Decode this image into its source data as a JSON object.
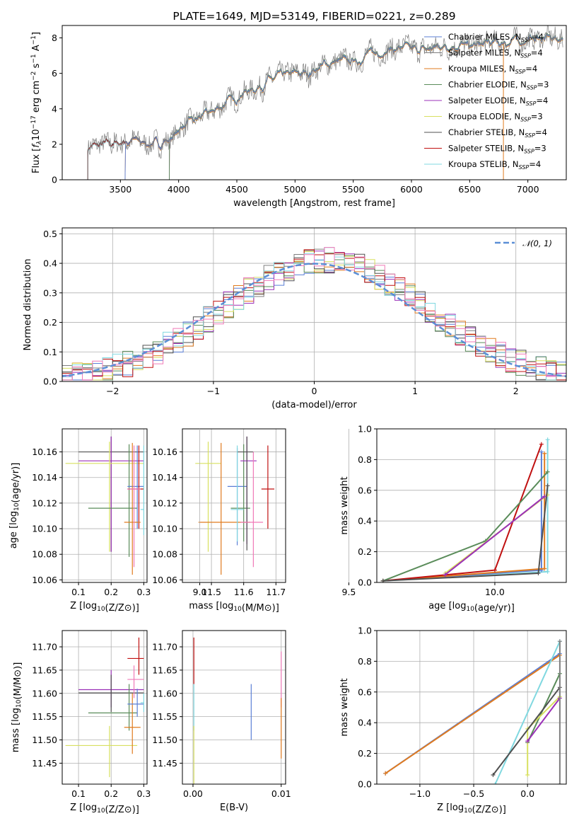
{
  "colors": {
    "Chabrier MILES": "#5b7fd6",
    "Salpeter MILES": "#7f7f7f",
    "Kroupa MILES": "#e07b1f",
    "Chabrier ELODIE": "#5a8c5a",
    "Salpeter ELODIE": "#9b30b8",
    "Kroupa ELODIE": "#d8e060",
    "Chabrier STELIB": "#505050",
    "Salpeter STELIB": "#c01010",
    "Kroupa STELIB": "#80d8e0",
    "pink": "#f07ab8",
    "normal": "#5b8fd6"
  },
  "chart_data": [
    {
      "id": "spectrum",
      "type": "line",
      "title": "PLATE=1649, MJD=53149, FIBERID=0221, z=0.289",
      "xlabel": "wavelength [Angstrom, rest frame]",
      "ylabel": "Flux [f_λ10^-17 erg cm^-2 s^-1 A^-1]",
      "xlim": [
        3000,
        7330
      ],
      "ylim": [
        0,
        8.7
      ],
      "xticks": [
        3500,
        4000,
        4500,
        5000,
        5500,
        6000,
        6500,
        7000
      ],
      "yticks": [
        0,
        2,
        4,
        6,
        8
      ],
      "grid": false,
      "legend_position": "top-right",
      "legend": [
        {
          "label": "Chabrier MILES, N_SSP=4",
          "model": "Chabrier MILES"
        },
        {
          "label": "Salpeter MILES, N_SSP=4",
          "model": "Salpeter MILES"
        },
        {
          "label": "Kroupa MILES, N_SSP=4",
          "model": "Kroupa MILES"
        },
        {
          "label": "Chabrier ELODIE, N_SSP=3",
          "model": "Chabrier ELODIE"
        },
        {
          "label": "Salpeter ELODIE, N_SSP=4",
          "model": "Salpeter ELODIE"
        },
        {
          "label": "Kroupa ELODIE, N_SSP=3",
          "model": "Kroupa ELODIE"
        },
        {
          "label": "Chabrier STELIB, N_SSP=4",
          "model": "Chabrier STELIB"
        },
        {
          "label": "Salpeter STELIB, N_SSP=3",
          "model": "Salpeter STELIB"
        },
        {
          "label": "Kroupa STELIB, N_SSP=4",
          "model": "Kroupa STELIB"
        }
      ],
      "continuum": [
        [
          3200,
          1.8
        ],
        [
          3400,
          2.0
        ],
        [
          3600,
          2.2
        ],
        [
          3800,
          2.0
        ],
        [
          3950,
          2.3
        ],
        [
          4000,
          2.9
        ],
        [
          4100,
          3.2
        ],
        [
          4300,
          3.9
        ],
        [
          4500,
          4.7
        ],
        [
          4700,
          5.3
        ],
        [
          4900,
          5.9
        ],
        [
          5100,
          6.0
        ],
        [
          5300,
          6.6
        ],
        [
          5500,
          6.7
        ],
        [
          5700,
          7.2
        ],
        [
          5900,
          7.4
        ],
        [
          6100,
          7.3
        ],
        [
          6300,
          7.6
        ],
        [
          6500,
          7.5
        ],
        [
          6700,
          7.7
        ],
        [
          6900,
          7.8
        ],
        [
          7100,
          8.0
        ],
        [
          7300,
          7.9
        ]
      ],
      "noise_amplitude": 0.45,
      "starts": [
        {
          "model": "Chabrier MILES",
          "x": 3540
        },
        {
          "model": "Salpeter MILES",
          "x": 3540
        },
        {
          "model": "Kroupa MILES",
          "x": 3540
        },
        {
          "model": "Chabrier ELODIE",
          "x": 3920
        },
        {
          "model": "Salpeter ELODIE",
          "x": 3920
        },
        {
          "model": "Kroupa ELODIE",
          "x": 3920
        },
        {
          "model": "Chabrier STELIB",
          "x": 3220
        },
        {
          "model": "Salpeter STELIB",
          "x": 3220
        },
        {
          "model": "Kroupa STELIB",
          "x": 3220
        }
      ],
      "ends": [
        {
          "model": "Chabrier MILES",
          "x": 7300
        },
        {
          "model": "Salpeter MILES",
          "x": 6700
        },
        {
          "model": "Kroupa MILES",
          "x": 7300
        }
      ]
    },
    {
      "id": "residuals",
      "type": "line",
      "xlabel": "(data-model)/error",
      "ylabel": "Normed distribution",
      "xlim": [
        -2.5,
        2.5
      ],
      "ylim": [
        0,
        0.52
      ],
      "xticks": [
        -2,
        -1,
        0,
        1,
        2
      ],
      "yticks": [
        0.0,
        0.1,
        0.2,
        0.3,
        0.4,
        0.5
      ],
      "grid": true,
      "legend_position": "top-right",
      "legend": [
        {
          "label": "𝒩(0, 1)",
          "style": "dashed"
        }
      ],
      "bin_width": 0.1,
      "histogram_jitter": 0.045,
      "histogram_models": [
        "Chabrier MILES",
        "Salpeter MILES",
        "Kroupa MILES",
        "Chabrier ELODIE",
        "Salpeter ELODIE",
        "Kroupa ELODIE",
        "Chabrier STELIB",
        "Salpeter STELIB",
        "Kroupa STELIB",
        "pink"
      ],
      "peak_shift": 0.15
    },
    {
      "id": "age_vs_Z",
      "type": "scatter",
      "xlabel": "Z [log10(Z/Z⊙)]",
      "ylabel": "age  [log10(age/yr)]",
      "xlim": [
        0.05,
        0.31
      ],
      "ylim": [
        10.058,
        10.178
      ],
      "xticks": [
        0.1,
        0.2,
        0.3
      ],
      "yticks": [
        10.06,
        10.08,
        10.1,
        10.12,
        10.14,
        10.16
      ],
      "grid": true,
      "points": [
        {
          "model": "Chabrier STELIB",
          "x": 0.2,
          "y": 10.16,
          "xerr": [
            0.1,
            0.3
          ],
          "yerr": [
            10.082,
            10.172
          ]
        },
        {
          "model": "Salpeter ELODIE",
          "x": 0.2,
          "y": 10.153,
          "xerr": [
            0.1,
            0.3
          ],
          "yerr": [
            10.082,
            10.172
          ]
        },
        {
          "model": "Kroupa ELODIE",
          "x": 0.195,
          "y": 10.151,
          "xerr": [
            0.06,
            0.3
          ],
          "yerr": [
            10.082,
            10.168
          ]
        },
        {
          "model": "Chabrier ELODIE",
          "x": 0.255,
          "y": 10.116,
          "xerr": [
            0.13,
            0.28
          ],
          "yerr": [
            10.078,
            10.166
          ]
        },
        {
          "model": "Chabrier MILES",
          "x": 0.28,
          "y": 10.133,
          "xerr": [
            0.25,
            0.3
          ],
          "yerr": [
            10.1,
            10.165
          ]
        },
        {
          "model": "Salpeter STELIB",
          "x": 0.285,
          "y": 10.131,
          "xerr": [
            0.25,
            0.3
          ],
          "yerr": [
            10.1,
            10.165
          ]
        },
        {
          "model": "Kroupa MILES",
          "x": 0.265,
          "y": 10.105,
          "xerr": [
            0.24,
            0.29
          ],
          "yerr": [
            10.064,
            10.167
          ]
        },
        {
          "model": "Kroupa STELIB",
          "x": 0.3,
          "y": 10.115,
          "xerr": [
            0.29,
            0.3
          ],
          "yerr": [
            10.095,
            10.165
          ]
        },
        {
          "model": "pink",
          "x": 0.27,
          "y": 10.131,
          "xerr": [
            0.25,
            0.29
          ],
          "yerr": [
            10.07,
            10.165
          ]
        }
      ]
    },
    {
      "id": "age_vs_mass",
      "type": "scatter",
      "xlabel": "mass [log10(M/M⊙)]",
      "ylabel": "",
      "xlim": [
        11.41,
        11.73
      ],
      "ylim": [
        10.058,
        10.178
      ],
      "xticks": [
        11.5,
        11.6,
        11.7
      ],
      "yticks": [
        10.06,
        10.08,
        10.1,
        10.12,
        10.14,
        10.16
      ],
      "grid": true,
      "points": [
        {
          "model": "Kroupa ELODIE",
          "x": 11.49,
          "y": 10.151,
          "xerr": [
            11.45,
            11.53
          ],
          "yerr": [
            10.082,
            10.168
          ]
        },
        {
          "model": "Kroupa MILES",
          "x": 11.53,
          "y": 10.105,
          "xerr": [
            11.46,
            11.62
          ],
          "yerr": [
            10.064,
            10.167
          ]
        },
        {
          "model": "Chabrier MILES",
          "x": 11.58,
          "y": 10.133,
          "xerr": [
            11.55,
            11.61
          ],
          "yerr": [
            10.087,
            10.163
          ]
        },
        {
          "model": "Chabrier ELODIE",
          "x": 11.6,
          "y": 10.116,
          "xerr": [
            11.56,
            11.62
          ],
          "yerr": [
            10.09,
            10.166
          ]
        },
        {
          "model": "Salpeter ELODIE",
          "x": 11.61,
          "y": 10.153,
          "xerr": [
            11.59,
            11.64
          ],
          "yerr": [
            10.088,
            10.172
          ]
        },
        {
          "model": "Chabrier STELIB",
          "x": 11.61,
          "y": 10.16,
          "xerr": [
            11.58,
            11.63
          ],
          "yerr": [
            10.083,
            10.172
          ]
        },
        {
          "model": "Salpeter STELIB",
          "x": 11.675,
          "y": 10.131,
          "xerr": [
            11.655,
            11.695
          ],
          "yerr": [
            10.1,
            10.165
          ]
        },
        {
          "model": "pink",
          "x": 11.63,
          "y": 10.105,
          "xerr": [
            11.59,
            11.66
          ],
          "yerr": [
            10.07,
            10.16
          ]
        },
        {
          "model": "Kroupa STELIB",
          "x": 11.58,
          "y": 10.115,
          "xerr": [
            11.56,
            11.6
          ],
          "yerr": [
            10.09,
            10.165
          ]
        }
      ]
    },
    {
      "id": "massweight_vs_age",
      "type": "line",
      "xlabel": "age  [log10(age/yr)]",
      "ylabel": "mass weight",
      "xlim": [
        9.5,
        10.23
      ],
      "xlim_display": [
        9.62,
        10.23
      ],
      "ylim": [
        0,
        1.0
      ],
      "xticks": [
        9.0,
        9.5,
        10.0
      ],
      "xtick_positions": [
        9.05,
        9.53,
        10.0
      ],
      "yticks": [
        0.0,
        0.2,
        0.4,
        0.6,
        0.8,
        1.0
      ],
      "grid": true,
      "series": [
        {
          "model": "Kroupa STELIB",
          "points": [
            [
              9.64,
              0.01
            ],
            [
              10.17,
              0.07
            ],
            [
              10.17,
              0.93
            ]
          ]
        },
        {
          "model": "Chabrier MILES",
          "points": [
            [
              9.64,
              0.01
            ],
            [
              10.15,
              0.08
            ],
            [
              10.15,
              0.85
            ]
          ]
        },
        {
          "model": "Kroupa MILES",
          "points": [
            [
              9.64,
              0.01
            ],
            [
              10.16,
              0.09
            ],
            [
              10.16,
              0.84
            ]
          ]
        },
        {
          "model": "Salpeter STELIB",
          "points": [
            [
              9.64,
              0.01
            ],
            [
              10.0,
              0.08
            ],
            [
              10.15,
              0.9
            ]
          ]
        },
        {
          "model": "Chabrier ELODIE",
          "points": [
            [
              9.64,
              0.01
            ],
            [
              9.97,
              0.27
            ],
            [
              10.17,
              0.72
            ]
          ]
        },
        {
          "model": "Kroupa ELODIE",
          "points": [
            [
              9.84,
              0.06
            ],
            [
              10.17,
              0.57
            ]
          ]
        },
        {
          "model": "Chabrier STELIB",
          "points": [
            [
              9.64,
              0.01
            ],
            [
              10.14,
              0.06
            ],
            [
              10.17,
              0.63
            ]
          ]
        },
        {
          "model": "Salpeter ELODIE",
          "points": [
            [
              9.84,
              0.05
            ],
            [
              10.16,
              0.56
            ]
          ]
        }
      ]
    },
    {
      "id": "mass_vs_Z",
      "type": "scatter",
      "xlabel": "Z [log10(Z/Z⊙)]",
      "ylabel": "mass [log10(M/M⊙)]",
      "xlim": [
        0.05,
        0.31
      ],
      "ylim": [
        11.405,
        11.735
      ],
      "xticks": [
        0.1,
        0.2,
        0.3
      ],
      "yticks": [
        11.45,
        11.5,
        11.55,
        11.6,
        11.65,
        11.7
      ],
      "grid": true,
      "points": [
        {
          "model": "Salpeter ELODIE",
          "x": 0.2,
          "y": 11.608,
          "xerr": [
            0.1,
            0.3
          ],
          "yerr": [
            11.57,
            11.65
          ]
        },
        {
          "model": "Chabrier STELIB",
          "x": 0.2,
          "y": 11.601,
          "xerr": [
            0.1,
            0.3
          ],
          "yerr": [
            11.56,
            11.64
          ]
        },
        {
          "model": "Kroupa ELODIE",
          "x": 0.195,
          "y": 11.488,
          "xerr": [
            0.06,
            0.28
          ],
          "yerr": [
            11.42,
            11.53
          ]
        },
        {
          "model": "Chabrier ELODIE",
          "x": 0.255,
          "y": 11.558,
          "xerr": [
            0.13,
            0.28
          ],
          "yerr": [
            11.52,
            11.62
          ]
        },
        {
          "model": "Kroupa MILES",
          "x": 0.265,
          "y": 11.527,
          "xerr": [
            0.24,
            0.29
          ],
          "yerr": [
            11.47,
            11.6
          ]
        },
        {
          "model": "Chabrier MILES",
          "x": 0.28,
          "y": 11.577,
          "xerr": [
            0.25,
            0.3
          ],
          "yerr": [
            11.55,
            11.61
          ]
        },
        {
          "model": "Salpeter STELIB",
          "x": 0.285,
          "y": 11.675,
          "xerr": [
            0.25,
            0.3
          ],
          "yerr": [
            11.64,
            11.72
          ]
        },
        {
          "model": "pink",
          "x": 0.27,
          "y": 11.63,
          "xerr": [
            0.25,
            0.3
          ],
          "yerr": [
            11.59,
            11.66
          ]
        },
        {
          "model": "Kroupa STELIB",
          "x": 0.3,
          "y": 11.58,
          "xerr": [
            0.29,
            0.3
          ],
          "yerr": [
            11.56,
            11.6
          ]
        }
      ]
    },
    {
      "id": "mass_vs_ebv",
      "type": "scatter",
      "xlabel": "E(B-V)",
      "ylabel": "",
      "xlim": [
        -0.0012,
        0.0105
      ],
      "ylim": [
        11.405,
        11.735
      ],
      "xticks": [
        0.0,
        0.01
      ],
      "yticks": [
        11.45,
        11.5,
        11.55,
        11.6,
        11.65,
        11.7
      ],
      "grid": true,
      "points": [
        {
          "model": "Salpeter STELIB",
          "x": 0.0001,
          "y": 11.675,
          "yerr": [
            11.62,
            11.72
          ]
        },
        {
          "model": "Kroupa STELIB",
          "x": 0.0001,
          "y": 11.58,
          "yerr": [
            11.52,
            11.62
          ]
        },
        {
          "model": "Kroupa ELODIE",
          "x": 0.0001,
          "y": 11.46,
          "yerr": [
            11.4,
            11.53
          ]
        },
        {
          "model": "Chabrier MILES",
          "x": 0.0066,
          "y": 11.56,
          "yerr": [
            11.5,
            11.62
          ]
        },
        {
          "model": "pink",
          "x": 0.01,
          "y": 11.63,
          "yerr": [
            11.57,
            11.69
          ]
        },
        {
          "model": "Kroupa MILES",
          "x": 0.01,
          "y": 11.53,
          "yerr": [
            11.46,
            11.59
          ]
        }
      ]
    },
    {
      "id": "massweight_vs_Z",
      "type": "line",
      "xlabel": "Z [log10(Z/Z⊙)]",
      "ylabel": "mass weight",
      "xlim": [
        -1.4,
        0.36
      ],
      "ylim": [
        0,
        1.0
      ],
      "xticks": [
        -1.0,
        -0.5,
        0.0
      ],
      "yticks": [
        0.0,
        0.2,
        0.4,
        0.6,
        0.8,
        1.0
      ],
      "grid": true,
      "series": [
        {
          "model": "Chabrier MILES",
          "points": [
            [
              -1.32,
              0.07
            ],
            [
              0.3,
              0.85
            ]
          ]
        },
        {
          "model": "Kroupa MILES",
          "points": [
            [
              -1.32,
              0.07
            ],
            [
              0.3,
              0.84
            ]
          ]
        },
        {
          "model": "Kroupa STELIB",
          "points": [
            [
              -0.3,
              0.0
            ],
            [
              0.3,
              0.93
            ]
          ]
        },
        {
          "model": "Chabrier ELODIE",
          "points": [
            [
              0.0,
              0.27
            ],
            [
              0.3,
              0.72
            ]
          ]
        },
        {
          "model": "Kroupa ELODIE",
          "points": [
            [
              0.0,
              0.06
            ],
            [
              0.0,
              0.36
            ],
            [
              0.3,
              0.57
            ]
          ]
        },
        {
          "model": "Chabrier STELIB",
          "points": [
            [
              -0.32,
              0.06
            ],
            [
              0.3,
              0.63
            ]
          ]
        },
        {
          "model": "Salpeter ELODIE",
          "points": [
            [
              0.0,
              0.28
            ],
            [
              0.3,
              0.56
            ]
          ]
        },
        {
          "model": "Salpeter MILES",
          "points": [
            [
              0.3,
              0.0
            ],
            [
              0.3,
              0.93
            ]
          ]
        }
      ]
    }
  ]
}
